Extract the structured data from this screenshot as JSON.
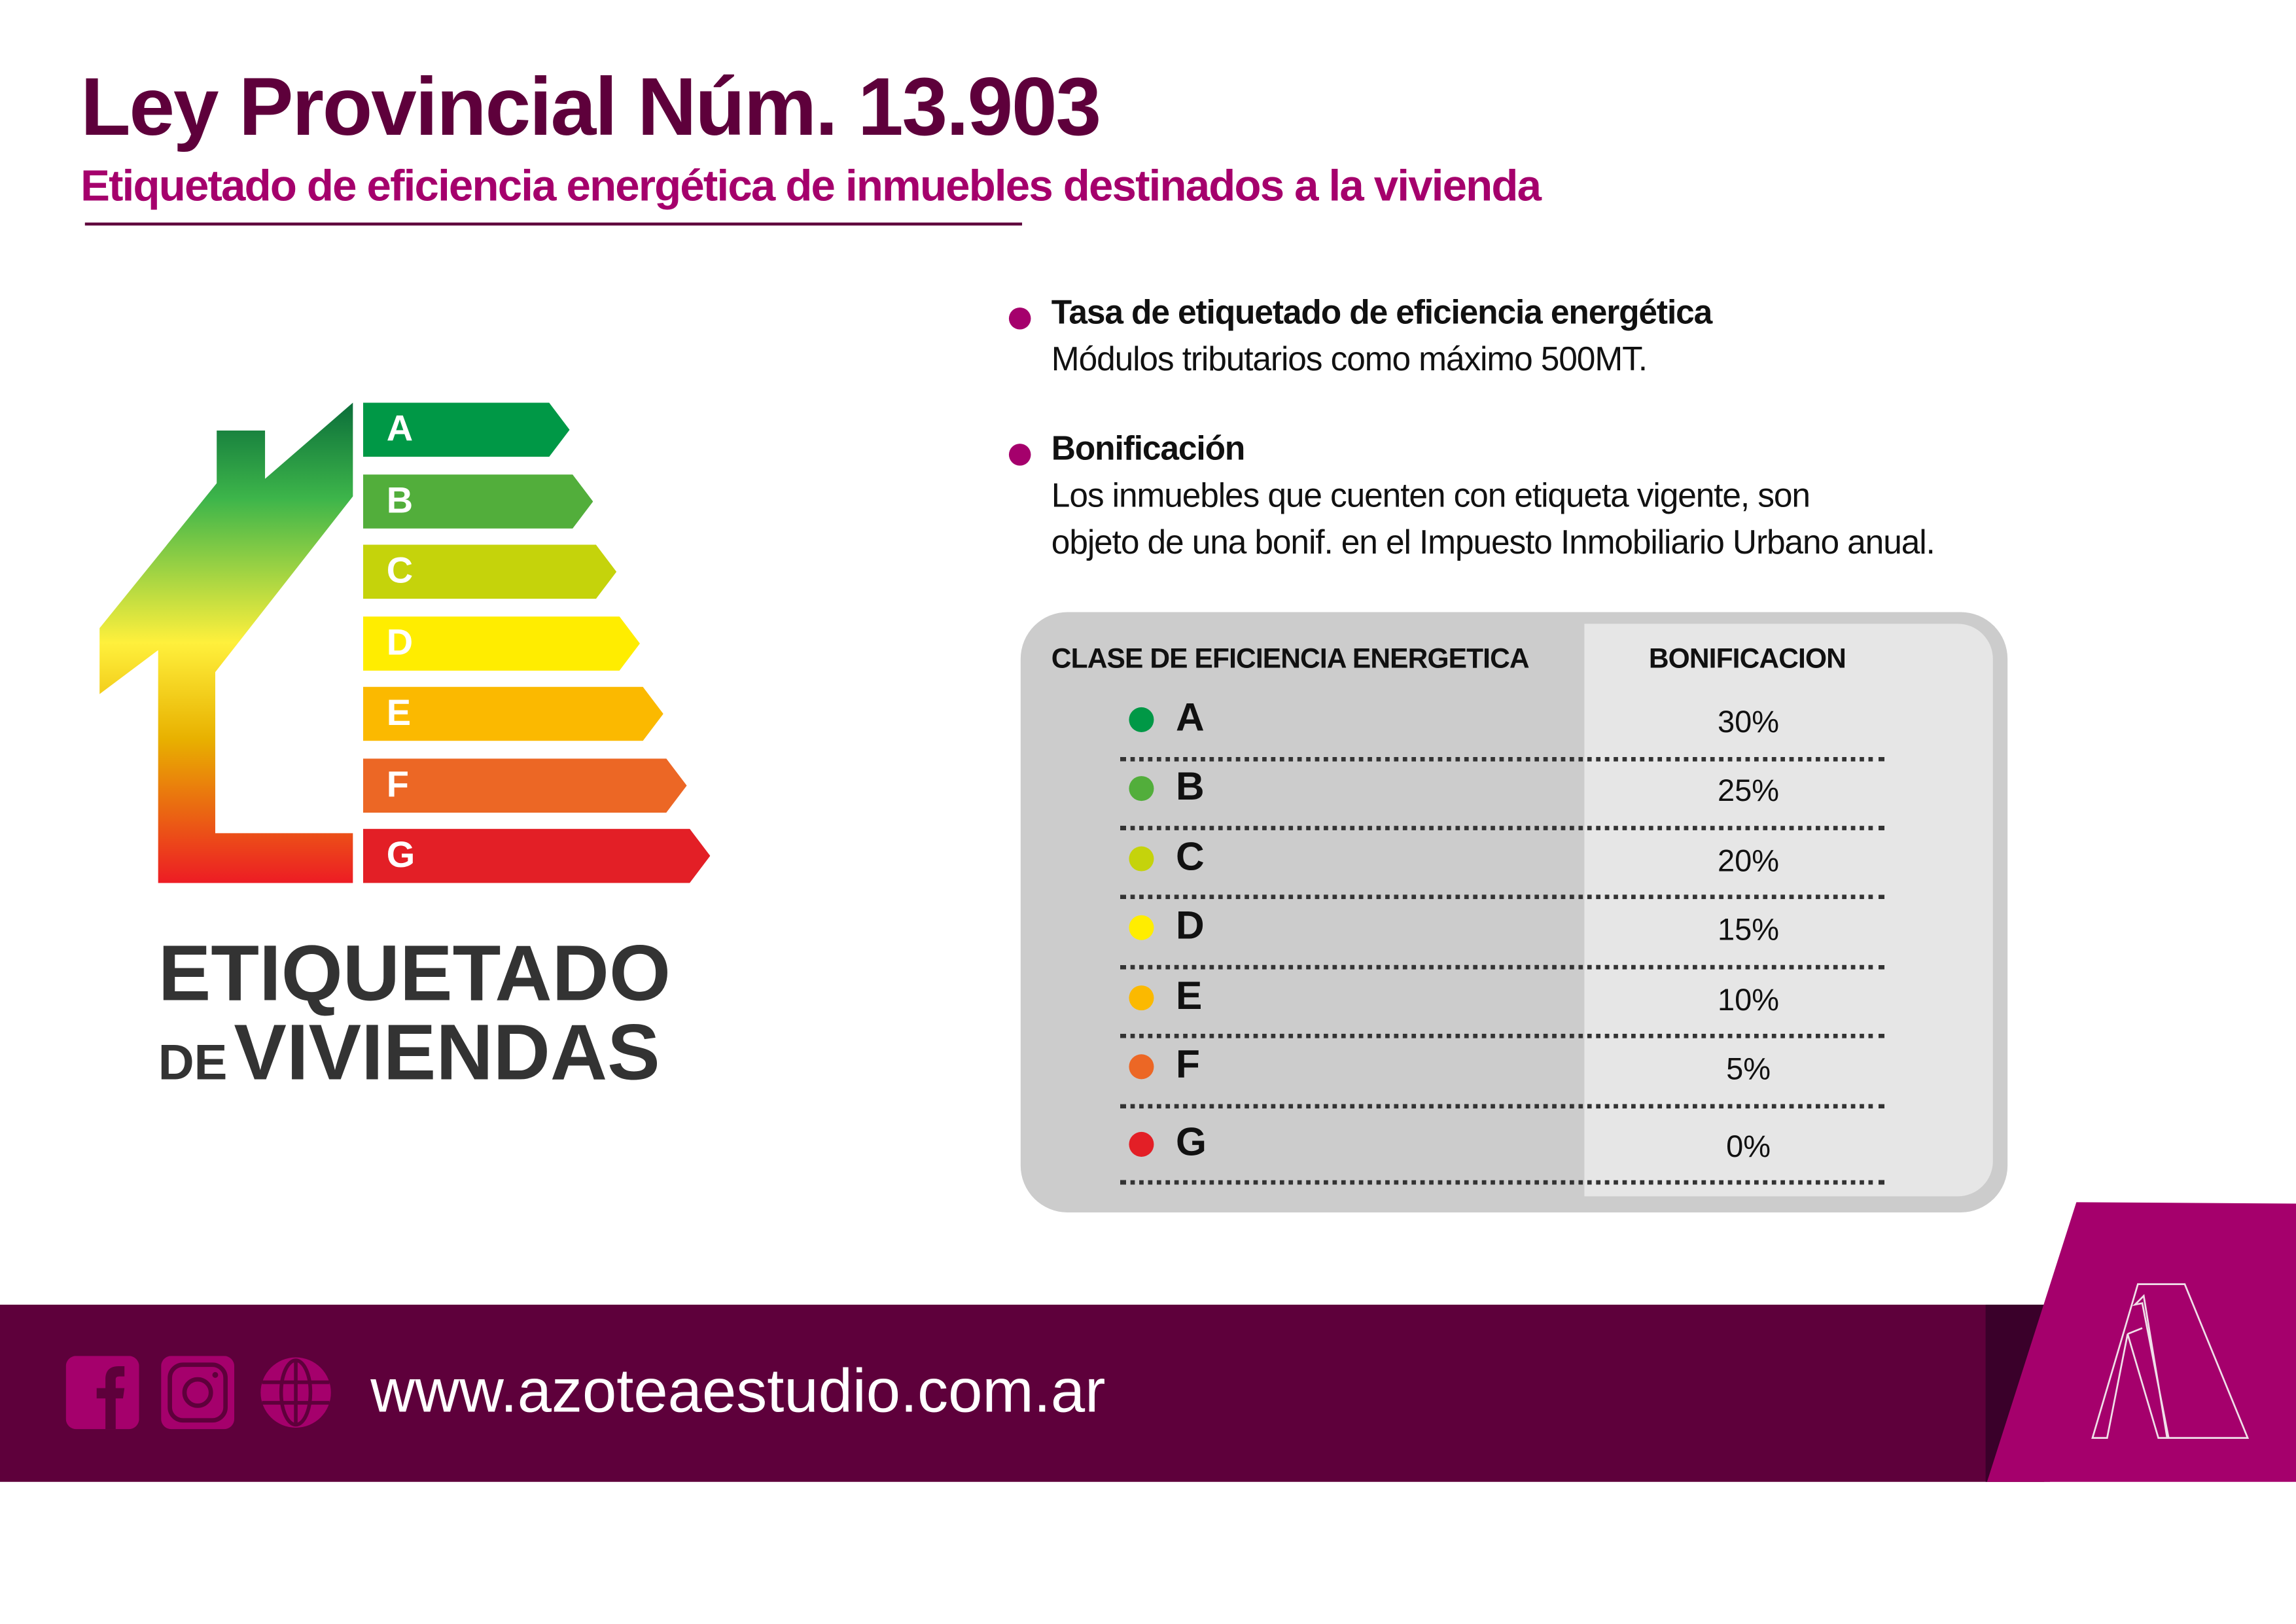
{
  "header": {
    "title": "Ley Provincial Núm. 13.903",
    "subtitle": "Etiquetado de eficiencia energética de inmuebles destinados a la vivienda"
  },
  "label_graphic": {
    "classes": [
      "A",
      "B",
      "C",
      "D",
      "E",
      "F",
      "G"
    ],
    "colors": [
      "#009846",
      "#52ae3b",
      "#c5d30b",
      "#ffed00",
      "#fbb900",
      "#ec6725",
      "#e31f26"
    ],
    "brand_line1": "ETIQUETADO",
    "brand_de": "DE",
    "brand_line2": "VIVIENDAS"
  },
  "info": [
    {
      "heading": "Tasa de etiquetado de eficiencia energética",
      "lines": [
        "Módulos tributarios como máximo 500MT."
      ]
    },
    {
      "heading": "Bonificación",
      "lines": [
        "Los inmuebles que cuenten con etiqueta vigente, son",
        "objeto de una bonif. en el Impuesto Inmobiliario Urbano anual."
      ]
    }
  ],
  "table": {
    "col1": "CLASE DE EFICIENCIA ENERGETICA",
    "col2": "BONIFICACION",
    "rows": [
      {
        "cls": "A",
        "value": "30%",
        "color": "#009846"
      },
      {
        "cls": "B",
        "value": "25%",
        "color": "#52ae3b"
      },
      {
        "cls": "C",
        "value": "20%",
        "color": "#c5d30b"
      },
      {
        "cls": "D",
        "value": "15%",
        "color": "#ffed00"
      },
      {
        "cls": "E",
        "value": "10%",
        "color": "#fbb900"
      },
      {
        "cls": "F",
        "value": "5%",
        "color": "#ec6725"
      },
      {
        "cls": "G",
        "value": "0%",
        "color": "#e31f26"
      }
    ]
  },
  "footer": {
    "url": "www.azoteaestudio.com.ar",
    "icons": [
      "facebook-icon",
      "instagram-icon",
      "globe-icon"
    ],
    "brand_color": "#a5006c",
    "band_color": "#5e003b"
  }
}
